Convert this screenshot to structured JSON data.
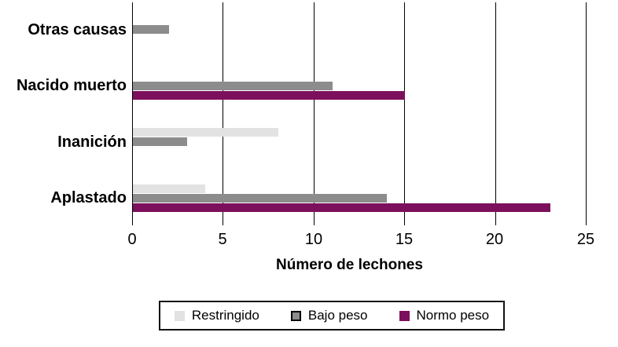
{
  "chart_data": {
    "type": "bar",
    "orientation": "horizontal",
    "title": "",
    "xlabel": "Número de lechones",
    "ylabel": "",
    "xlim": [
      0,
      25
    ],
    "xticks": [
      0,
      5,
      10,
      15,
      20,
      25
    ],
    "grid": "vertical-lines",
    "legend_position": "bottom",
    "categories": [
      "Otras causas",
      "Nacido muerto",
      "Inanición",
      "Aplastado"
    ],
    "series": [
      {
        "name": "Restringido",
        "color": "#e2e2e2",
        "values": [
          0,
          0,
          8,
          4
        ]
      },
      {
        "name": "Bajo peso",
        "color": "#8c8c8c",
        "values": [
          2,
          11,
          3,
          14
        ]
      },
      {
        "name": "Normo peso",
        "color": "#7c105c",
        "values": [
          0,
          15,
          0,
          23
        ]
      }
    ],
    "colors": {
      "gridline": "#000000",
      "text": "#000000",
      "legend_border": "#111111"
    }
  }
}
